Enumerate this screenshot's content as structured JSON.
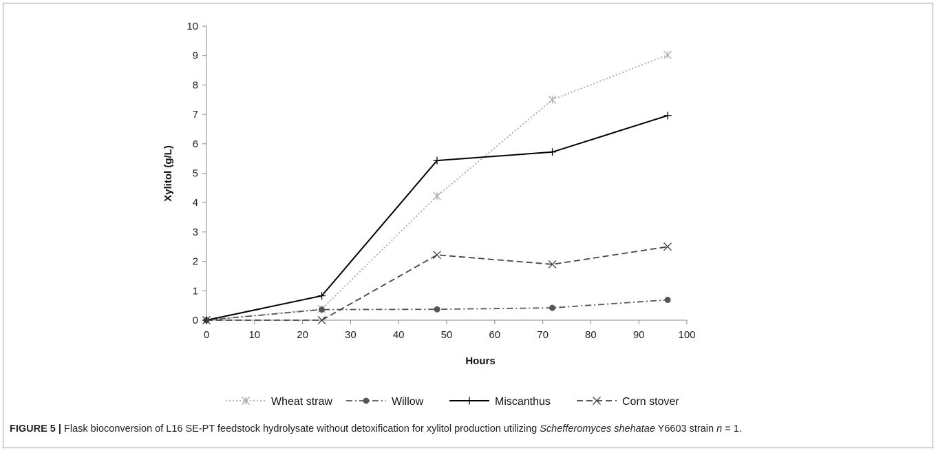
{
  "chart_data": {
    "type": "line",
    "xlabel": "Hours",
    "ylabel": "Xylitol (g/L)",
    "xlim": [
      0,
      100
    ],
    "ylim": [
      0,
      10
    ],
    "xticks": [
      "0",
      "10",
      "20",
      "30",
      "40",
      "50",
      "60",
      "70",
      "80",
      "90",
      "100"
    ],
    "yticks": [
      "0",
      "1",
      "2",
      "3",
      "4",
      "5",
      "6",
      "7",
      "8",
      "9",
      "10"
    ],
    "grid": false,
    "legend_position": "bottom",
    "series": [
      {
        "name": "Wheat straw",
        "x": [
          0,
          24,
          48,
          72,
          96
        ],
        "y": [
          0,
          0.38,
          4.22,
          7.5,
          9.02
        ],
        "color": "#aaaaaa",
        "dash": "dotted",
        "marker": "asterisk"
      },
      {
        "name": "Willow",
        "x": [
          0,
          24,
          48,
          72,
          96
        ],
        "y": [
          0,
          0.36,
          0.37,
          0.42,
          0.69
        ],
        "color": "#555555",
        "dash": "dash-dot",
        "marker": "circle"
      },
      {
        "name": "Miscanthus",
        "x": [
          0,
          24,
          48,
          72,
          96
        ],
        "y": [
          0,
          0.83,
          5.43,
          5.72,
          6.96
        ],
        "color": "#000000",
        "dash": "solid",
        "marker": "plus"
      },
      {
        "name": "Corn stover",
        "x": [
          0,
          24,
          48,
          72,
          96
        ],
        "y": [
          0,
          0,
          2.22,
          1.9,
          2.5
        ],
        "color": "#444444",
        "dash": "dashed",
        "marker": "x"
      }
    ]
  },
  "caption": {
    "label": "FIGURE 5 |",
    "text_before_species": " Flask bioconversion of L16 SE-PT feedstock hydrolysate without detoxification for xylitol production utilizing ",
    "species": "Schefferomyces shehatae",
    "text_after_species": " Y6603 strain ",
    "n_symbol": "n",
    "n_value": " = 1."
  }
}
